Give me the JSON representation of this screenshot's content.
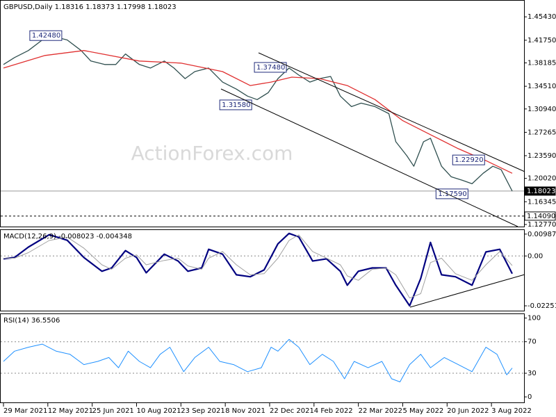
{
  "chart_data": [
    {
      "type": "line",
      "title": "GBPUSD,Daily  1.18316 1.18373 1.17998 1.18023",
      "watermark": "ActionForex.com",
      "ylim": [
        1.1244,
        1.4797
      ],
      "yticks": [
        {
          "value": 1.4543,
          "label": "1.45430"
        },
        {
          "value": 1.4175,
          "label": "1.41750"
        },
        {
          "value": 1.38185,
          "label": "1.38185"
        },
        {
          "value": 1.3451,
          "label": "1.34510"
        },
        {
          "value": 1.3094,
          "label": "1.30940"
        },
        {
          "value": 1.27265,
          "label": "1.27265"
        },
        {
          "value": 1.2359,
          "label": "1.23590"
        },
        {
          "value": 1.2002,
          "label": "1.20020"
        },
        {
          "value": 1.16345,
          "label": "1.16345"
        },
        {
          "value": 1.1277,
          "label": "1.12770"
        }
      ],
      "series": [
        {
          "name": "GBPUSD",
          "color": "#2f4f4f",
          "x": [
            0,
            8,
            18,
            28,
            36,
            46,
            56,
            63,
            73,
            81,
            88,
            98,
            106,
            116,
            123,
            131,
            138,
            148,
            158,
            168,
            176,
            183,
            191,
            198,
            206,
            213,
            221,
            228,
            236,
            243,
            251,
            258,
            268,
            278,
            283,
            291,
            296,
            303,
            308,
            316,
            323,
            331,
            338,
            346,
            353,
            359,
            367
          ],
          "values": [
            1.3793,
            1.3903,
            1.4013,
            1.4179,
            1.4234,
            1.4179,
            1.4013,
            1.3848,
            1.3793,
            1.3793,
            1.3958,
            1.3793,
            1.3738,
            1.3848,
            1.3738,
            1.3572,
            1.3682,
            1.3738,
            1.3517,
            1.3406,
            1.3296,
            1.3241,
            1.3351,
            1.3572,
            1.3738,
            1.3627,
            1.3517,
            1.3572,
            1.3605,
            1.3296,
            1.3131,
            1.3186,
            1.3131,
            1.302,
            1.2579,
            1.2358,
            1.2193,
            1.2579,
            1.2634,
            1.2193,
            1.2027,
            1.1972,
            1.1917,
            1.2082,
            1.2193,
            1.2138,
            1.18023
          ]
        },
        {
          "name": "MA",
          "color": "#e03030",
          "x": [
            0,
            30,
            58,
            98,
            128,
            158,
            178,
            193,
            208,
            228,
            248,
            268,
            288,
            308,
            328,
            348,
            367
          ],
          "values": [
            1.3738,
            1.3936,
            1.4013,
            1.3848,
            1.3815,
            1.3682,
            1.3462,
            1.3517,
            1.3594,
            1.3572,
            1.3462,
            1.3241,
            1.291,
            1.2689,
            1.2469,
            1.2281,
            1.2082
          ]
        }
      ],
      "annotations": [
        {
          "x": 19,
          "value": 1.4248,
          "label": "1.42480"
        },
        {
          "x": 181,
          "value": 1.3748,
          "label": "1.37480"
        },
        {
          "x": 156,
          "value": 1.3158,
          "label": "1.31580"
        },
        {
          "x": 324,
          "value": 1.2292,
          "label": "1.22920"
        },
        {
          "x": 312,
          "value": 1.1759,
          "label": "1.17590"
        }
      ],
      "price_lines": [
        {
          "value": 1.18023,
          "label": "1.18023",
          "style": "solid"
        },
        {
          "value": 1.1409,
          "label": "1.14090",
          "style": "dashed"
        }
      ]
    },
    {
      "type": "line",
      "title": "MACD(12,26,9) -0.008023 -0.004348",
      "ylim": [
        -0.0247,
        0.0117
      ],
      "yticks": [
        0.009872,
        {
          "value": 0,
          "label": "0.00"
        },
        -0.022516
      ],
      "levels": [
        0
      ],
      "series": [
        {
          "name": "MACD",
          "color": "#000080",
          "width": 2.2,
          "x": [
            0,
            8,
            18,
            33,
            46,
            58,
            71,
            78,
            88,
            96,
            103,
            116,
            126,
            133,
            143,
            148,
            158,
            168,
            178,
            188,
            198,
            206,
            213,
            223,
            233,
            243,
            248,
            256,
            266,
            276,
            283,
            293,
            301,
            308,
            316,
            326,
            338,
            348,
            358,
            367
          ],
          "values": [
            -0.0013,
            -0.0007,
            0.004,
            0.0096,
            0.0071,
            -0.0007,
            -0.0069,
            -0.0054,
            0.0024,
            -0.0007,
            -0.0076,
            0.0008,
            -0.0023,
            -0.0069,
            -0.0054,
            0.003,
            0.0008,
            -0.0085,
            -0.0094,
            -0.0063,
            0.0055,
            0.0102,
            0.0086,
            -0.0023,
            -0.0013,
            -0.0069,
            -0.0132,
            -0.0069,
            -0.0054,
            -0.0054,
            -0.0132,
            -0.0225,
            -0.0101,
            0.0061,
            -0.0085,
            -0.0094,
            -0.0132,
            0.0018,
            0.003,
            -0.008
          ]
        },
        {
          "name": "Signal",
          "color": "#a0a0a0",
          "width": 1,
          "x": [
            0,
            8,
            18,
            33,
            46,
            58,
            71,
            78,
            88,
            96,
            103,
            116,
            126,
            133,
            143,
            148,
            158,
            168,
            178,
            188,
            198,
            206,
            213,
            223,
            233,
            243,
            248,
            256,
            266,
            276,
            283,
            293,
            301,
            308,
            316,
            326,
            338,
            348,
            358,
            367
          ],
          "values": [
            -0.001,
            -0.001,
            0.0015,
            0.007,
            0.0085,
            0.0035,
            -0.004,
            -0.006,
            -0.001,
            0.0005,
            -0.004,
            -0.002,
            -0.001,
            -0.0045,
            -0.006,
            -0.001,
            0.002,
            -0.004,
            -0.0085,
            -0.008,
            -0.001,
            0.007,
            0.0095,
            0.002,
            -0.001,
            -0.004,
            -0.009,
            -0.011,
            -0.006,
            -0.0055,
            -0.0085,
            -0.019,
            -0.017,
            -0.003,
            -0.001,
            -0.008,
            -0.011,
            -0.004,
            0.002,
            -0.004348
          ]
        }
      ]
    },
    {
      "type": "line",
      "title": "RSI(14) 36.5506",
      "ylim": [
        -7,
        105
      ],
      "yticks": [
        100,
        70,
        30,
        0
      ],
      "levels": [
        70,
        30
      ],
      "xlim": [
        -2,
        375.5
      ],
      "xticks": [
        {
          "value": 0,
          "label": "29 Mar 2021"
        },
        {
          "value": 32,
          "label": "12 May 2021"
        },
        {
          "value": 64,
          "label": "25 Jun 2021"
        },
        {
          "value": 96,
          "label": "10 Aug 2021"
        },
        {
          "value": 128,
          "label": "23 Sep 2021"
        },
        {
          "value": 160,
          "label": "8 Nov 2021"
        },
        {
          "value": 192,
          "label": "22 Dec 2021"
        },
        {
          "value": 224,
          "label": "4 Feb 2022"
        },
        {
          "value": 256,
          "label": "22 Mar 2022"
        },
        {
          "value": 288,
          "label": "5 May 2022"
        },
        {
          "value": 320,
          "label": "20 Jun 2022"
        },
        {
          "value": 352,
          "label": "3 Aug 2022"
        }
      ],
      "series": [
        {
          "name": "RSI",
          "color": "#1e90ff",
          "width": 1,
          "x": [
            0,
            8,
            18,
            28,
            38,
            48,
            58,
            68,
            76,
            83,
            90,
            98,
            106,
            113,
            120,
            130,
            138,
            148,
            156,
            166,
            176,
            186,
            193,
            198,
            206,
            213,
            221,
            230,
            238,
            246,
            253,
            263,
            273,
            280,
            286,
            293,
            301,
            308,
            318,
            328,
            338,
            348,
            356,
            363,
            367
          ],
          "values": [
            45,
            58,
            63,
            67,
            58,
            54,
            41,
            45,
            50,
            37,
            58,
            45,
            37,
            54,
            63,
            32,
            50,
            63,
            45,
            41,
            32,
            37,
            63,
            58,
            73,
            63,
            41,
            54,
            45,
            23,
            45,
            37,
            45,
            23,
            19,
            41,
            54,
            37,
            50,
            41,
            32,
            63,
            54,
            28,
            36.5506
          ]
        }
      ]
    }
  ]
}
